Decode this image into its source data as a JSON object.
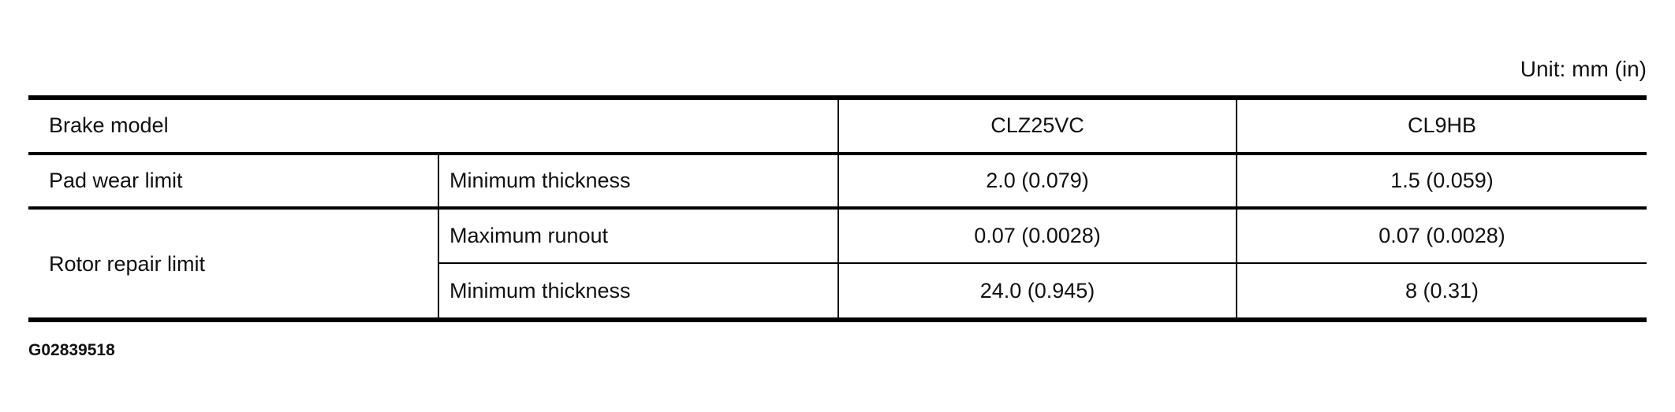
{
  "unit_label": "Unit: mm (in)",
  "table": {
    "header": {
      "label": "Brake model",
      "models": [
        "CLZ25VC",
        "CL9HB"
      ]
    },
    "rows": [
      {
        "group": "Pad wear limit",
        "item": "Minimum thickness",
        "values": [
          "2.0 (0.079)",
          "1.5 (0.059)"
        ]
      },
      {
        "group": "Rotor repair limit",
        "item": "Maximum runout",
        "values": [
          "0.07 (0.0028)",
          "0.07 (0.0028)"
        ]
      },
      {
        "group": "Rotor repair limit",
        "item": "Minimum thickness",
        "values": [
          "24.0 (0.945)",
          "8 (0.31)"
        ]
      }
    ]
  },
  "figure_id": "G02839518"
}
